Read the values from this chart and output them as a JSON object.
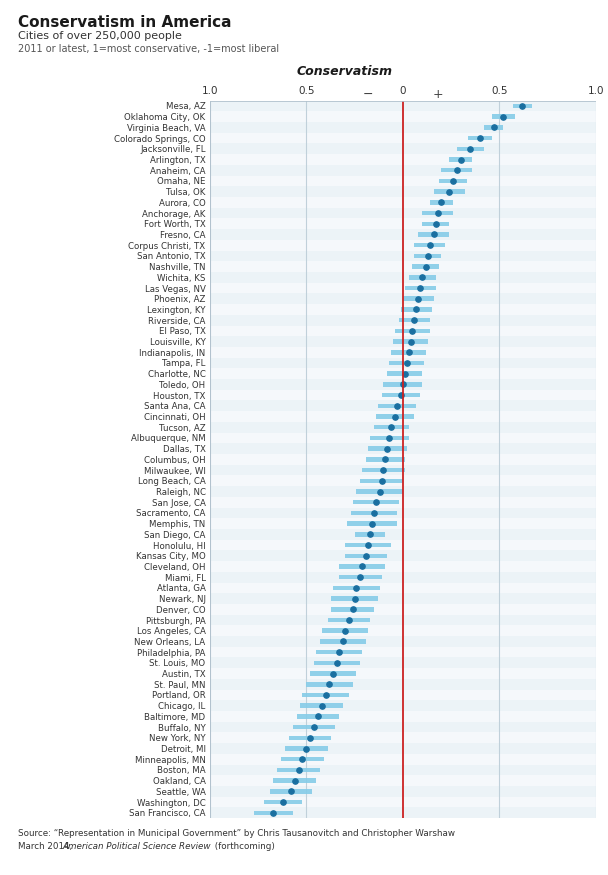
{
  "title": "Conservatism in America",
  "subtitle": "Cities of over 250,000 people",
  "axis_label": "2011 or latest, 1=most conservative, -1=most liberal",
  "conservatism_label": "Conservatism",
  "source_line1": "Source: “Representation in Municipal Government” by Chris Tausanovitch and Christopher Warshaw",
  "source_line2": "March 2014, American Political Science Review (forthcoming)",
  "cities": [
    "Mesa, AZ",
    "Oklahoma City, OK",
    "Virginia Beach, VA",
    "Colorado Springs, CO",
    "Jacksonville, FL",
    "Arlington, TX",
    "Anaheim, CA",
    "Omaha, NE",
    "Tulsa, OK",
    "Aurora, CO",
    "Anchorage, AK",
    "Fort Worth, TX",
    "Fresno, CA",
    "Corpus Christi, TX",
    "San Antonio, TX",
    "Nashville, TN",
    "Wichita, KS",
    "Las Vegas, NV",
    "Phoenix, AZ",
    "Lexington, KY",
    "Riverside, CA",
    "El Paso, TX",
    "Louisville, KY",
    "Indianapolis, IN",
    "Tampa, FL",
    "Charlotte, NC",
    "Toledo, OH",
    "Houston, TX",
    "Santa Ana, CA",
    "Cincinnati, OH",
    "Tucson, AZ",
    "Albuquerque, NM",
    "Dallas, TX",
    "Columbus, OH",
    "Milwaukee, WI",
    "Long Beach, CA",
    "Raleigh, NC",
    "San Jose, CA",
    "Sacramento, CA",
    "Memphis, TN",
    "San Diego, CA",
    "Honolulu, HI",
    "Kansas City, MO",
    "Cleveland, OH",
    "Miami, FL",
    "Atlanta, GA",
    "Newark, NJ",
    "Denver, CO",
    "Pittsburgh, PA",
    "Los Angeles, CA",
    "New Orleans, LA",
    "Philadelphia, PA",
    "St. Louis, MO",
    "Austin, TX",
    "St. Paul, MN",
    "Portland, OR",
    "Chicago, IL",
    "Baltimore, MD",
    "Buffalo, NY",
    "New York, NY",
    "Detroit, MI",
    "Minneapolis, MN",
    "Boston, MA",
    "Oakland, CA",
    "Seattle, WA",
    "Washington, DC",
    "San Francisco, CA"
  ],
  "point_values": [
    0.62,
    0.52,
    0.47,
    0.4,
    0.35,
    0.3,
    0.28,
    0.26,
    0.24,
    0.2,
    0.18,
    0.17,
    0.16,
    0.14,
    0.13,
    0.12,
    0.1,
    0.09,
    0.08,
    0.07,
    0.06,
    0.05,
    0.04,
    0.03,
    0.02,
    0.01,
    0.0,
    -0.01,
    -0.03,
    -0.04,
    -0.06,
    -0.07,
    -0.08,
    -0.09,
    -0.1,
    -0.11,
    -0.12,
    -0.14,
    -0.15,
    -0.16,
    -0.17,
    -0.18,
    -0.19,
    -0.21,
    -0.22,
    -0.24,
    -0.25,
    -0.26,
    -0.28,
    -0.3,
    -0.31,
    -0.33,
    -0.34,
    -0.36,
    -0.38,
    -0.4,
    -0.42,
    -0.44,
    -0.46,
    -0.48,
    -0.5,
    -0.52,
    -0.54,
    -0.56,
    -0.58,
    -0.62,
    -0.67
  ],
  "ci_low": [
    0.57,
    0.46,
    0.42,
    0.34,
    0.28,
    0.24,
    0.2,
    0.19,
    0.16,
    0.14,
    0.1,
    0.1,
    0.08,
    0.06,
    0.06,
    0.05,
    0.03,
    0.01,
    0.0,
    -0.01,
    -0.02,
    -0.04,
    -0.05,
    -0.06,
    -0.07,
    -0.08,
    -0.1,
    -0.11,
    -0.13,
    -0.14,
    -0.15,
    -0.17,
    -0.18,
    -0.19,
    -0.21,
    -0.22,
    -0.24,
    -0.26,
    -0.27,
    -0.29,
    -0.25,
    -0.3,
    -0.3,
    -0.33,
    -0.33,
    -0.36,
    -0.37,
    -0.37,
    -0.39,
    -0.42,
    -0.43,
    -0.45,
    -0.46,
    -0.48,
    -0.5,
    -0.52,
    -0.53,
    -0.55,
    -0.57,
    -0.59,
    -0.61,
    -0.63,
    -0.65,
    -0.67,
    -0.69,
    -0.72,
    -0.77
  ],
  "ci_high": [
    0.67,
    0.58,
    0.52,
    0.46,
    0.42,
    0.36,
    0.36,
    0.33,
    0.32,
    0.26,
    0.26,
    0.24,
    0.24,
    0.22,
    0.2,
    0.19,
    0.17,
    0.17,
    0.16,
    0.15,
    0.14,
    0.14,
    0.13,
    0.12,
    0.11,
    0.1,
    0.1,
    0.09,
    0.07,
    0.06,
    0.03,
    0.03,
    0.02,
    0.01,
    0.01,
    0.0,
    0.0,
    -0.02,
    -0.03,
    -0.03,
    -0.09,
    -0.06,
    -0.08,
    -0.09,
    -0.11,
    -0.12,
    -0.13,
    -0.15,
    -0.17,
    -0.18,
    -0.19,
    -0.21,
    -0.22,
    -0.24,
    -0.26,
    -0.28,
    -0.31,
    -0.33,
    -0.35,
    -0.37,
    -0.39,
    -0.41,
    -0.43,
    -0.45,
    -0.47,
    -0.52,
    -0.57
  ],
  "bg_color": "#ffffff",
  "bar_color": "#85cce8",
  "dot_color": "#1a6fa0",
  "grid_color": "#c0d0da",
  "zero_line_color": "#cc2222",
  "title_color": "#1a1a1a",
  "text_color": "#333333",
  "row_even_color": "#ddeaf2",
  "row_odd_color": "#eef4f8"
}
